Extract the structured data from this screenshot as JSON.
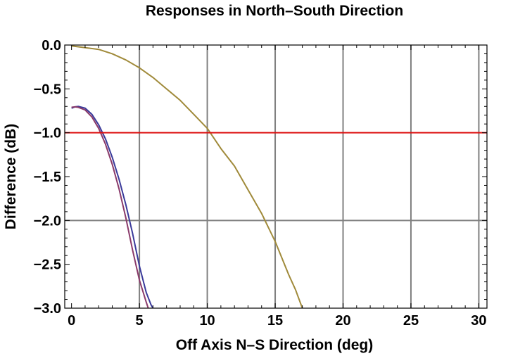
{
  "chart_data": {
    "type": "line",
    "title": "Responses in North–South Direction",
    "xlabel": "Off Axis N–S Direction (deg)",
    "ylabel": "Difference (dB)",
    "xlim": [
      -0.5,
      30.6
    ],
    "ylim": [
      -3.0,
      0.0
    ],
    "x_ticks": [
      0,
      5,
      10,
      15,
      20,
      25,
      30
    ],
    "x_tick_labels": [
      "0",
      "5",
      "10",
      "15",
      "20",
      "25",
      "30"
    ],
    "y_ticks": [
      0.0,
      -0.5,
      -1.0,
      -1.5,
      -2.0,
      -2.5,
      -3.0
    ],
    "y_tick_labels": [
      "0.0",
      "−0.5",
      "−1.0",
      "−1.5",
      "−2.0",
      "−2.5",
      "−3.0"
    ],
    "grid_x": [
      5,
      10,
      15,
      20,
      25,
      30
    ],
    "grid_y": [
      -2.0
    ],
    "series": [
      {
        "color": "#3a3a9a",
        "x": [
          0,
          0.25,
          0.5,
          1.0,
          1.5,
          2.0,
          2.5,
          3.0,
          3.5,
          4.0,
          4.5,
          5.0,
          5.5,
          5.85,
          6.0,
          6.1
        ],
        "y": [
          -0.72,
          -0.705,
          -0.7,
          -0.72,
          -0.79,
          -0.91,
          -1.07,
          -1.28,
          -1.53,
          -1.82,
          -2.15,
          -2.52,
          -2.82,
          -2.96,
          -3.0,
          -3.03
        ]
      },
      {
        "color": "#8a3a6a",
        "x": [
          0,
          0.25,
          0.5,
          1.0,
          1.5,
          2.0,
          2.5,
          3.0,
          3.5,
          4.0,
          4.5,
          5.0,
          5.5,
          5.65,
          5.8
        ],
        "y": [
          -0.71,
          -0.705,
          -0.71,
          -0.74,
          -0.82,
          -0.95,
          -1.13,
          -1.36,
          -1.64,
          -1.97,
          -2.34,
          -2.68,
          -2.93,
          -3.0,
          -3.04
        ]
      },
      {
        "color": "#a08a3a",
        "x": [
          0,
          1,
          2,
          3,
          4,
          5,
          6,
          7,
          8,
          9,
          10,
          11,
          12,
          13,
          14,
          15,
          16,
          16.5,
          17.0
        ],
        "y": [
          -0.01,
          -0.03,
          -0.05,
          -0.1,
          -0.17,
          -0.26,
          -0.37,
          -0.5,
          -0.63,
          -0.79,
          -0.95,
          -1.18,
          -1.38,
          -1.65,
          -1.92,
          -2.24,
          -2.62,
          -2.79,
          -3.0
        ]
      },
      {
        "color": "#dd1111",
        "x": [
          -0.5,
          30.6
        ],
        "y": [
          -1.0,
          -1.0
        ]
      }
    ],
    "grid": true,
    "legend": "none"
  }
}
